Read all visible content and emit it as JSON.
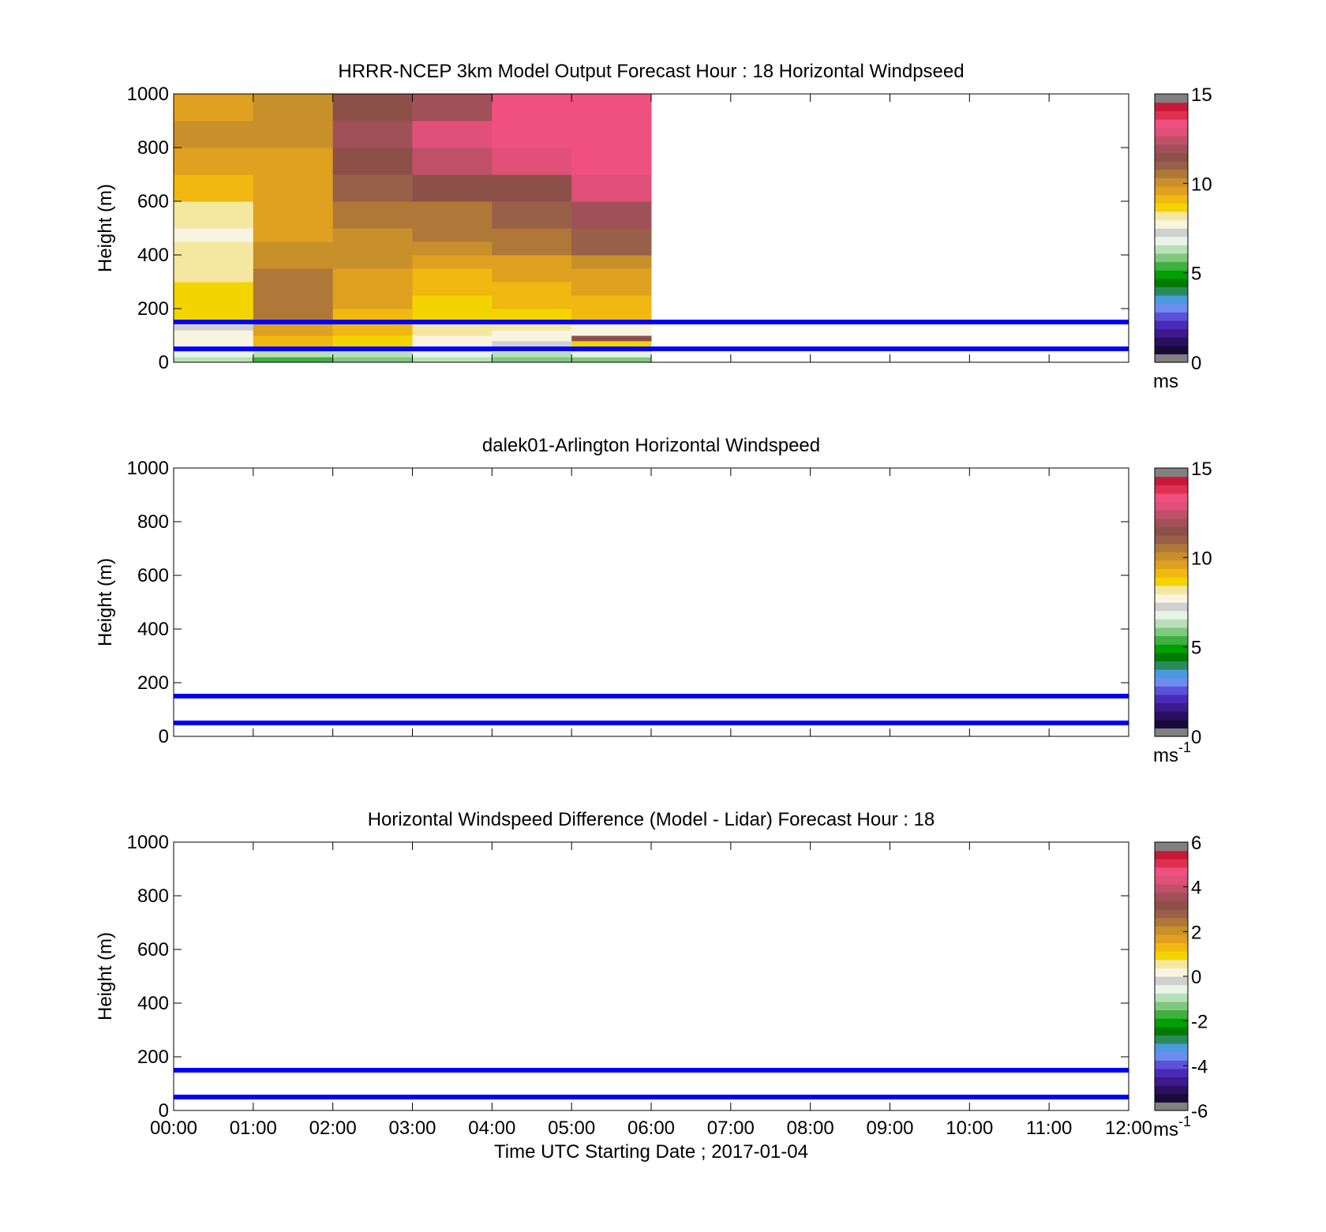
{
  "chart_data": [
    {
      "type": "heatmap",
      "title": "HRRR-NCEP 3km Model Output   Forecast Hour : 18 Horizontal Windpseed",
      "ylabel": "Height (m)",
      "xlabel": "",
      "xlim": [
        0,
        12
      ],
      "ylim": [
        0,
        1000
      ],
      "yticks": [
        0,
        200,
        400,
        600,
        800,
        1000
      ],
      "show_xtick_labels": false,
      "colorbar": {
        "range": [
          0,
          15
        ],
        "ticks": [
          0,
          5,
          10,
          15
        ],
        "unit_label": "ms",
        "unit_sup": ""
      },
      "reference_lines": [
        {
          "height": 150,
          "color": "#0000ff"
        },
        {
          "height": 50,
          "color": "#0000ff"
        }
      ],
      "heatmap": {
        "x_edges": [
          0,
          1,
          2,
          3,
          4,
          5,
          6
        ],
        "y_edges": [
          0,
          20,
          40,
          60,
          80,
          100,
          120,
          140,
          160,
          200,
          250,
          300,
          350,
          400,
          450,
          500,
          600,
          700,
          800,
          900,
          1000
        ],
        "values": [
          [
            6.3,
            5.3,
            5.6,
            6.0,
            5.9,
            5.6
          ],
          [
            6.8,
            6.3,
            6.4,
            6.8,
            6.4,
            6.8
          ],
          [
            7.2,
            8.6,
            7.1,
            7.3,
            6.9,
            7.1
          ],
          [
            7.6,
            9.0,
            8.6,
            7.9,
            7.2,
            8.5
          ],
          [
            7.7,
            9.3,
            8.8,
            7.9,
            7.6,
            11.8
          ],
          [
            7.5,
            9.5,
            9.1,
            8.0,
            7.9,
            7.6
          ],
          [
            7.4,
            9.6,
            9.2,
            8.2,
            8.1,
            7.8
          ],
          [
            7.6,
            9.7,
            9.3,
            8.3,
            8.2,
            8.0
          ],
          [
            8.6,
            10.5,
            9.3,
            8.6,
            8.8,
            9.1
          ],
          [
            8.6,
            10.6,
            9.6,
            8.9,
            9.2,
            9.3
          ],
          [
            8.6,
            10.6,
            9.7,
            9.1,
            9.3,
            9.5
          ],
          [
            8.4,
            10.5,
            9.9,
            9.4,
            9.6,
            9.9
          ],
          [
            8.3,
            10.3,
            10.0,
            9.8,
            9.9,
            10.3
          ],
          [
            8.0,
            10.0,
            10.2,
            10.3,
            10.5,
            11.0
          ],
          [
            7.9,
            9.9,
            10.4,
            10.6,
            10.8,
            11.4
          ],
          [
            8.4,
            9.8,
            10.7,
            10.9,
            11.0,
            12.0
          ],
          [
            9.3,
            9.8,
            11.2,
            11.9,
            11.9,
            13.2
          ],
          [
            9.7,
            9.9,
            11.9,
            12.8,
            13.0,
            13.7
          ],
          [
            10.0,
            10.0,
            12.1,
            13.0,
            13.5,
            13.5
          ],
          [
            9.8,
            10.0,
            11.9,
            12.0,
            13.6,
            13.6
          ]
        ]
      }
    },
    {
      "type": "heatmap",
      "title": "dalek01-Arlington  Horizontal Windspeed",
      "ylabel": "Height (m)",
      "xlabel": "",
      "xlim": [
        0,
        12
      ],
      "ylim": [
        0,
        1000
      ],
      "yticks": [
        0,
        200,
        400,
        600,
        800,
        1000
      ],
      "show_xtick_labels": false,
      "colorbar": {
        "range": [
          0,
          15
        ],
        "ticks": [
          0,
          5,
          10,
          15
        ],
        "unit_label": "ms",
        "unit_sup": "-1"
      },
      "reference_lines": [
        {
          "height": 150,
          "color": "#0000ff"
        },
        {
          "height": 50,
          "color": "#0000ff"
        }
      ],
      "heatmap": null
    },
    {
      "type": "heatmap",
      "title": "Horizontal Windspeed Difference (Model - Lidar) Forecast Hour : 18",
      "ylabel": "Height (m)",
      "xlabel": "Time UTC  Starting Date ; 2017-01-04",
      "xlim": [
        0,
        12
      ],
      "ylim": [
        0,
        1000
      ],
      "yticks": [
        0,
        200,
        400,
        600,
        800,
        1000
      ],
      "show_xtick_labels": true,
      "xtick_labels": [
        "00:00",
        "01:00",
        "02:00",
        "03:00",
        "04:00",
        "05:00",
        "06:00",
        "07:00",
        "08:00",
        "09:00",
        "10:00",
        "11:00",
        "12:00"
      ],
      "colorbar": {
        "range": [
          -6,
          6
        ],
        "ticks": [
          -6,
          -4,
          -2,
          0,
          2,
          4,
          6
        ],
        "unit_label": "ms",
        "unit_sup": "-1"
      },
      "reference_lines": [
        {
          "height": 150,
          "color": "#0000ff"
        },
        {
          "height": 50,
          "color": "#0000ff"
        }
      ],
      "heatmap": null
    }
  ],
  "colormap": [
    "#808080",
    "#1a0a3a",
    "#2a1060",
    "#3c1a8c",
    "#4a2ab8",
    "#5c52d8",
    "#6e8cf0",
    "#4a9ae0",
    "#2a8a5a",
    "#007a00",
    "#00a000",
    "#40b040",
    "#80c880",
    "#b8e0b8",
    "#e8f4e8",
    "#d0d0d0",
    "#f8f4e0",
    "#f4e8a0",
    "#f4d400",
    "#f0b810",
    "#e0a020",
    "#c8902a",
    "#b07838",
    "#986048",
    "#8c5048",
    "#a05058",
    "#c05068",
    "#e05078",
    "#f05080",
    "#e03050",
    "#c81838",
    "#808080"
  ]
}
